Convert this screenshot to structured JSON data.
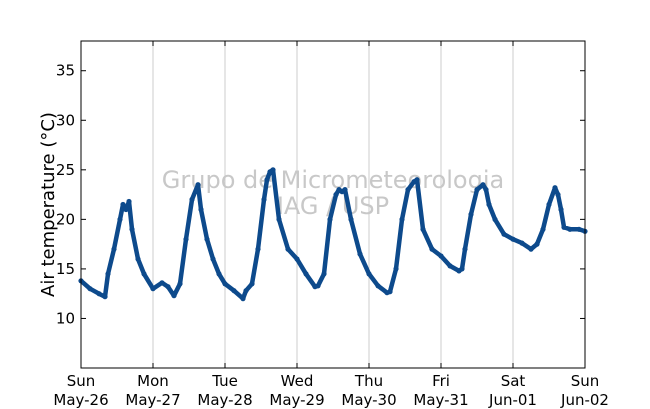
{
  "chart_data": {
    "type": "scatter",
    "ylabel": "Air temperature (°C)",
    "ylim": [
      5,
      38
    ],
    "yticks": [
      10,
      15,
      20,
      25,
      30,
      35
    ],
    "xlim": [
      "2013-05-26T00:00",
      "2013-06-02T00:00"
    ],
    "xticks": [
      {
        "day": "Sun",
        "date": "May-26"
      },
      {
        "day": "Mon",
        "date": "May-27"
      },
      {
        "day": "Tue",
        "date": "May-28"
      },
      {
        "day": "Wed",
        "date": "May-29"
      },
      {
        "day": "Thu",
        "date": "May-30"
      },
      {
        "day": "Fri",
        "date": "May-31"
      },
      {
        "day": "Sat",
        "date": "Jun-01"
      },
      {
        "day": "Sun",
        "date": "Jun-02"
      }
    ],
    "grid": "vertical",
    "series_color": "#0d4a8c",
    "watermark": [
      "Grupo de Micrometeorologia",
      "IAG / USP"
    ],
    "series": [
      {
        "x": [
          "2013-05-26T00:00",
          "2013-05-26T03:00",
          "2013-05-26T06:00",
          "2013-05-26T08:00",
          "2013-05-26T09:00",
          "2013-05-26T11:00",
          "2013-05-26T13:00",
          "2013-05-26T14:00",
          "2013-05-26T15:00",
          "2013-05-26T16:00",
          "2013-05-26T17:00",
          "2013-05-26T19:00",
          "2013-05-26T21:00",
          "2013-05-27T00:00",
          "2013-05-27T03:00",
          "2013-05-27T05:00",
          "2013-05-27T07:00",
          "2013-05-27T09:00",
          "2013-05-27T11:00",
          "2013-05-27T13:00",
          "2013-05-27T15:00",
          "2013-05-27T16:00",
          "2013-05-27T18:00",
          "2013-05-27T20:00",
          "2013-05-27T22:00",
          "2013-05-28T00:00",
          "2013-05-28T03:00",
          "2013-05-28T06:00",
          "2013-05-28T07:00",
          "2013-05-28T09:00",
          "2013-05-28T11:00",
          "2013-05-28T13:00",
          "2013-05-28T14:00",
          "2013-05-28T15:00",
          "2013-05-28T16:00",
          "2013-05-28T18:00",
          "2013-05-28T21:00",
          "2013-05-29T00:00",
          "2013-05-29T03:00",
          "2013-05-29T06:00",
          "2013-05-29T07:00",
          "2013-05-29T09:00",
          "2013-05-29T11:00",
          "2013-05-29T13:00",
          "2013-05-29T14:00",
          "2013-05-29T15:00",
          "2013-05-29T16:00",
          "2013-05-29T18:00",
          "2013-05-29T21:00",
          "2013-05-30T00:00",
          "2013-05-30T03:00",
          "2013-05-30T06:00",
          "2013-05-30T07:00",
          "2013-05-30T09:00",
          "2013-05-30T11:00",
          "2013-05-30T13:00",
          "2013-05-30T15:00",
          "2013-05-30T16:00",
          "2013-05-30T18:00",
          "2013-05-30T21:00",
          "2013-05-31T00:00",
          "2013-05-31T03:00",
          "2013-05-31T06:00",
          "2013-05-31T07:00",
          "2013-05-31T08:00",
          "2013-05-31T10:00",
          "2013-05-31T12:00",
          "2013-05-31T14:00",
          "2013-05-31T15:00",
          "2013-05-31T16:00",
          "2013-05-31T18:00",
          "2013-05-31T21:00",
          "2013-06-01T00:00",
          "2013-06-01T03:00",
          "2013-06-01T06:00",
          "2013-06-01T08:00",
          "2013-06-01T10:00",
          "2013-06-01T12:00",
          "2013-06-01T14:00",
          "2013-06-01T15:00",
          "2013-06-01T16:00",
          "2013-06-01T17:00",
          "2013-06-01T19:00",
          "2013-06-01T22:00",
          "2013-06-02T00:00"
        ],
        "y": [
          13.8,
          13.0,
          12.5,
          12.2,
          14.5,
          17.0,
          20.0,
          21.5,
          21.0,
          21.8,
          19.0,
          16.0,
          14.5,
          13.0,
          13.6,
          13.2,
          12.3,
          13.5,
          18.0,
          22.0,
          23.5,
          21.0,
          18.0,
          16.0,
          14.5,
          13.5,
          12.8,
          12.0,
          12.8,
          13.5,
          17.0,
          22.0,
          24.0,
          24.8,
          25.0,
          20.0,
          17.0,
          16.0,
          14.5,
          13.2,
          13.3,
          14.5,
          20.0,
          22.5,
          23.0,
          22.8,
          23.0,
          20.0,
          16.5,
          14.5,
          13.3,
          12.6,
          12.7,
          15.0,
          20.0,
          23.0,
          23.8,
          24.0,
          19.0,
          17.0,
          16.3,
          15.3,
          14.8,
          15.0,
          17.0,
          20.5,
          23.0,
          23.5,
          23.0,
          21.5,
          20.0,
          18.5,
          18.0,
          17.6,
          17.0,
          17.5,
          19.0,
          21.5,
          23.2,
          22.5,
          21.0,
          19.2,
          19.0,
          19.0,
          18.8
        ]
      }
    ]
  }
}
